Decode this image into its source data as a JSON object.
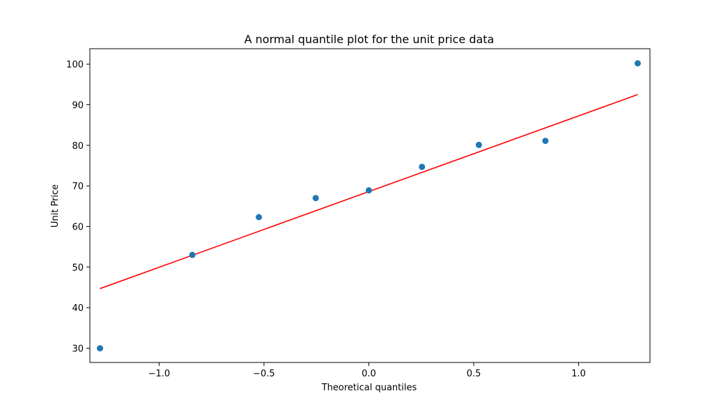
{
  "chart_data": {
    "type": "scatter",
    "title": "A normal quantile plot for the unit price data",
    "xlabel": "Theoretical quantiles",
    "ylabel": "Unit Price",
    "xlim": [
      -1.33,
      1.34
    ],
    "ylim": [
      26.5,
      103.8
    ],
    "x_ticks": [
      -1.0,
      -0.5,
      0.0,
      0.5,
      1.0
    ],
    "x_tick_labels": [
      "−1.0",
      "−0.5",
      "0.0",
      "0.5",
      "1.0"
    ],
    "y_ticks": [
      30,
      40,
      50,
      60,
      70,
      80,
      90,
      100
    ],
    "y_tick_labels": [
      "30",
      "40",
      "50",
      "60",
      "70",
      "80",
      "90",
      "100"
    ],
    "grid": false,
    "legend": "none",
    "series": [
      {
        "kind": "points",
        "color": "#1f77b4",
        "x": [
          -1.2816,
          -0.8416,
          -0.5244,
          -0.2533,
          0.0,
          0.2533,
          0.5244,
          0.8416,
          1.2816
        ],
        "y": [
          30.0,
          53.0,
          62.3,
          67.0,
          68.9,
          74.7,
          80.1,
          81.1,
          100.2
        ]
      },
      {
        "kind": "fit-line",
        "color": "#ff0000",
        "x": [
          -1.2816,
          1.2816
        ],
        "y": [
          44.7,
          92.5
        ]
      }
    ]
  }
}
